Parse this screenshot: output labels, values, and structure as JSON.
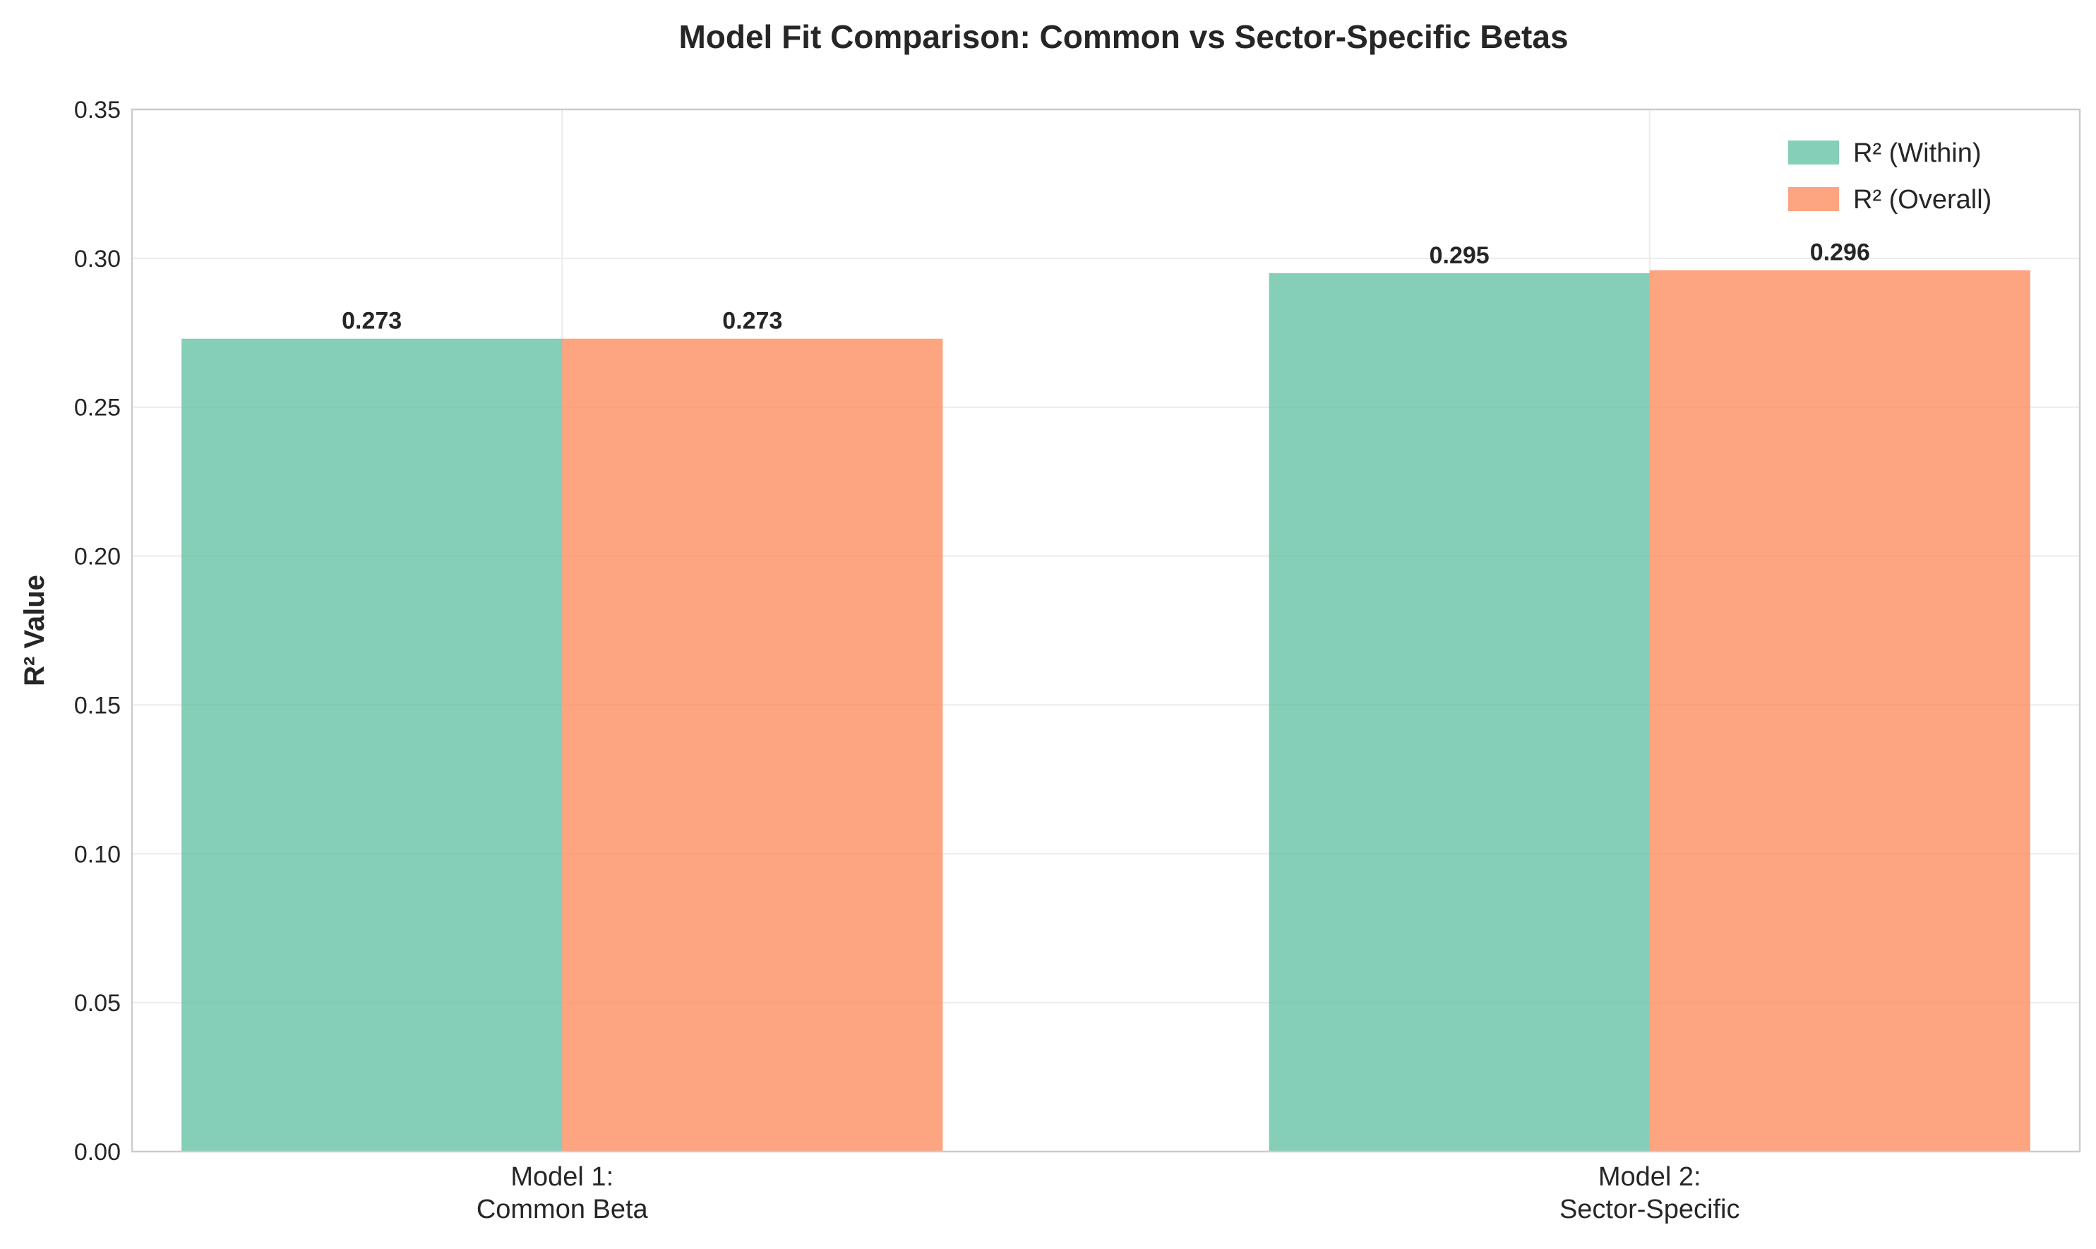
{
  "chart_data": {
    "type": "bar",
    "title": "Model Fit Comparison: Common vs Sector-Specific Betas",
    "xlabel": "",
    "ylabel": "R² Value",
    "categories": [
      [
        "Model 1:",
        "Common Beta"
      ],
      [
        "Model 2:",
        "Sector-Specific"
      ]
    ],
    "series": [
      {
        "name": "R² (Within)",
        "values": [
          0.273,
          0.295
        ],
        "labels": [
          "0.273",
          "0.295"
        ],
        "color": "#66c2a5"
      },
      {
        "name": "R² (Overall)",
        "values": [
          0.273,
          0.296
        ],
        "labels": [
          "0.273",
          "0.296"
        ],
        "color": "#fc8d62"
      }
    ],
    "ylim": [
      0,
      0.35
    ],
    "yticks": [
      "0.00",
      "0.05",
      "0.10",
      "0.15",
      "0.20",
      "0.25",
      "0.30",
      "0.35"
    ],
    "grid": true,
    "legend_position": "top-right"
  }
}
